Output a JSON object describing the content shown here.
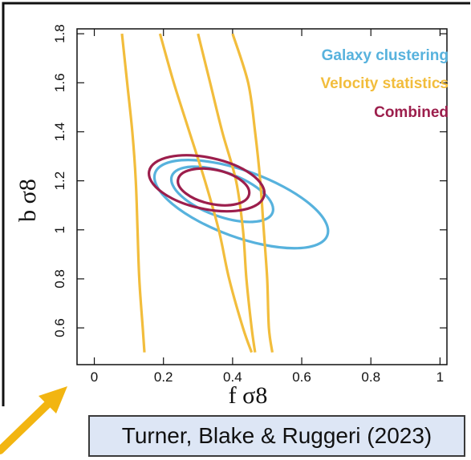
{
  "colors": {
    "galaxy": "#57b2dd",
    "velocity": "#f2bd3c",
    "combined": "#9c1e4c",
    "arrow": "#f2b511",
    "citation_bg": "#dde6f5"
  },
  "chart_data": {
    "type": "contour",
    "xlabel": "f σ8",
    "ylabel": "b σ8",
    "xlim": [
      -0.05,
      1.02
    ],
    "ylim": [
      0.45,
      1.82
    ],
    "xticks": [
      0,
      0.2,
      0.4,
      0.6,
      0.8,
      1
    ],
    "xtick_labels": [
      "0",
      "0.2",
      "0.4",
      "0.6",
      "0.8",
      "1"
    ],
    "yticks": [
      0.6,
      0.8,
      1.0,
      1.2,
      1.4,
      1.6,
      1.8
    ],
    "ytick_labels": [
      "0.6",
      "0.8",
      "1",
      "1.2",
      "1.4",
      "1.6",
      "1.8"
    ],
    "legend_position": "top-right",
    "series": [
      {
        "name": "Galaxy clustering",
        "kind": "ellipses",
        "contours": [
          {
            "level": "inner",
            "center": [
              0.37,
              1.145
            ],
            "semi_major": 0.155,
            "semi_minor": 0.09,
            "tilt_deg": 20
          },
          {
            "level": "outer",
            "center": [
              0.425,
              1.105
            ],
            "semi_major": 0.265,
            "semi_minor": 0.135,
            "tilt_deg": 20
          }
        ]
      },
      {
        "name": "Velocity statistics",
        "kind": "curves",
        "contours": [
          {
            "level": "outer-left",
            "points": [
              [
                0.08,
                1.8
              ],
              [
                0.095,
                1.6
              ],
              [
                0.11,
                1.4
              ],
              [
                0.12,
                1.2
              ],
              [
                0.125,
                1.0
              ],
              [
                0.13,
                0.8
              ],
              [
                0.14,
                0.6
              ],
              [
                0.145,
                0.5
              ]
            ]
          },
          {
            "level": "inner-left",
            "points": [
              [
                0.19,
                1.8
              ],
              [
                0.23,
                1.6
              ],
              [
                0.275,
                1.4
              ],
              [
                0.32,
                1.2
              ],
              [
                0.36,
                1.0
              ],
              [
                0.39,
                0.8
              ],
              [
                0.43,
                0.6
              ],
              [
                0.455,
                0.5
              ]
            ]
          },
          {
            "level": "inner-right",
            "points": [
              [
                0.3,
                1.8
              ],
              [
                0.335,
                1.6
              ],
              [
                0.37,
                1.4
              ],
              [
                0.41,
                1.2
              ],
              [
                0.43,
                1.0
              ],
              [
                0.44,
                0.8
              ],
              [
                0.455,
                0.6
              ],
              [
                0.465,
                0.5
              ]
            ]
          },
          {
            "level": "outer-right",
            "points": [
              [
                0.4,
                1.8
              ],
              [
                0.445,
                1.6
              ],
              [
                0.465,
                1.4
              ],
              [
                0.48,
                1.2
              ],
              [
                0.49,
                1.0
              ],
              [
                0.5,
                0.8
              ],
              [
                0.505,
                0.6
              ],
              [
                0.515,
                0.5
              ]
            ]
          }
        ]
      },
      {
        "name": "Combined",
        "kind": "ellipses",
        "contours": [
          {
            "level": "inner",
            "center": [
              0.345,
              1.175
            ],
            "semi_major": 0.105,
            "semi_minor": 0.07,
            "tilt_deg": 12
          },
          {
            "level": "outer",
            "center": [
              0.325,
              1.19
            ],
            "semi_major": 0.17,
            "semi_minor": 0.105,
            "tilt_deg": 12
          }
        ]
      }
    ]
  },
  "citation": "Turner, Blake & Ruggeri (2023)"
}
